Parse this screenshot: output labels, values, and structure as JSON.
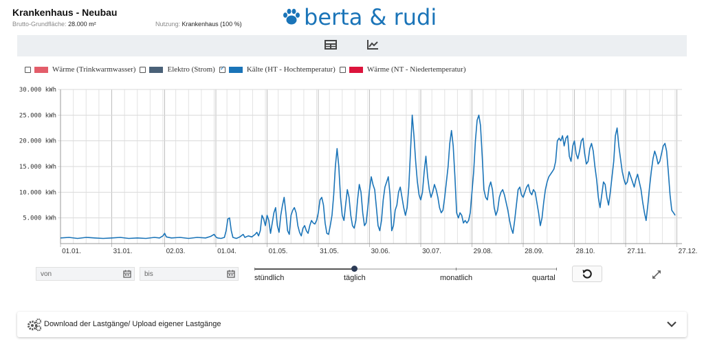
{
  "header": {
    "title": "Krankenhaus - Neubau",
    "area_label": "Brutto-Grundfläche:",
    "area_value": "28.000 m²",
    "usage_label": "Nutzung:",
    "usage_value": "Krankenhaus (100 %)"
  },
  "logo": {
    "text": "berta & rudi",
    "icon": "paw-icon"
  },
  "toolbar": {
    "table_icon": "table-icon",
    "chart_icon": "line-chart-icon"
  },
  "legend": [
    {
      "label": "Wärme (Trinkwarmwasser)",
      "color": "#e35d6a",
      "checked": false
    },
    {
      "label": "Elektro (Strom)",
      "color": "#4a6178",
      "checked": false
    },
    {
      "label": "Kälte (HT - Hochtemperatur)",
      "color": "#1a74b8",
      "checked": true
    },
    {
      "label": "Wärme (NT - Niedertemperatur)",
      "color": "#dc143c",
      "checked": false
    }
  ],
  "chart_data": {
    "type": "line",
    "unit": "kWh",
    "ylim": [
      0,
      30000
    ],
    "yticks": [
      5000,
      10000,
      15000,
      20000,
      25000,
      30000
    ],
    "ytick_labels": [
      "5.000 kWh",
      "10.000 kWh",
      "15.000 kWh",
      "20.000 kWh",
      "25.000 kWh",
      "30.000 kWh"
    ],
    "xlim": [
      0,
      364
    ],
    "xtick_days": [
      0,
      30,
      61,
      91,
      121,
      151,
      181,
      211,
      241,
      271,
      301,
      331,
      361
    ],
    "xtick_labels": [
      "01.01.",
      "31.01.",
      "02.03.",
      "01.04.",
      "01.05.",
      "31.05.",
      "30.06.",
      "30.07.",
      "29.08.",
      "28.09.",
      "28.10.",
      "27.11.",
      "27.12."
    ],
    "grid": true,
    "series": [
      {
        "name": "Kälte (HT - Hochtemperatur)",
        "color": "#1a74b8",
        "points": [
          [
            0,
            1100
          ],
          [
            5,
            1200
          ],
          [
            10,
            1000
          ],
          [
            15,
            1200
          ],
          [
            20,
            1100
          ],
          [
            25,
            1000
          ],
          [
            30,
            1100
          ],
          [
            35,
            1200
          ],
          [
            40,
            1000
          ],
          [
            45,
            1100
          ],
          [
            50,
            1000
          ],
          [
            55,
            1200
          ],
          [
            58,
            1100
          ],
          [
            60,
            1500
          ],
          [
            61,
            2000
          ],
          [
            62,
            1300
          ],
          [
            65,
            1100
          ],
          [
            70,
            1200
          ],
          [
            75,
            1000
          ],
          [
            80,
            1200
          ],
          [
            85,
            1100
          ],
          [
            88,
            1400
          ],
          [
            90,
            1800
          ],
          [
            91,
            1300
          ],
          [
            92,
            1100
          ],
          [
            94,
            1000
          ],
          [
            96,
            1200
          ],
          [
            97,
            2500
          ],
          [
            98,
            4800
          ],
          [
            99,
            5000
          ],
          [
            100,
            2500
          ],
          [
            101,
            1200
          ],
          [
            103,
            1000
          ],
          [
            105,
            1300
          ],
          [
            107,
            1800
          ],
          [
            108,
            1200
          ],
          [
            110,
            1500
          ],
          [
            112,
            1300
          ],
          [
            114,
            1800
          ],
          [
            115,
            2200
          ],
          [
            116,
            1500
          ],
          [
            117,
            2500
          ],
          [
            118,
            5500
          ],
          [
            119,
            4800
          ],
          [
            120,
            3500
          ],
          [
            121,
            5500
          ],
          [
            122,
            4500
          ],
          [
            123,
            2000
          ],
          [
            124,
            4000
          ],
          [
            125,
            6000
          ],
          [
            126,
            7000
          ],
          [
            127,
            3500
          ],
          [
            128,
            2200
          ],
          [
            129,
            5500
          ],
          [
            130,
            7500
          ],
          [
            131,
            9000
          ],
          [
            132,
            6000
          ],
          [
            133,
            2500
          ],
          [
            134,
            1800
          ],
          [
            135,
            5500
          ],
          [
            136,
            6500
          ],
          [
            137,
            7000
          ],
          [
            138,
            6000
          ],
          [
            139,
            3500
          ],
          [
            140,
            2200
          ],
          [
            141,
            1500
          ],
          [
            142,
            3000
          ],
          [
            143,
            3500
          ],
          [
            144,
            2500
          ],
          [
            145,
            2000
          ],
          [
            146,
            3500
          ],
          [
            147,
            4500
          ],
          [
            148,
            4000
          ],
          [
            149,
            3800
          ],
          [
            150,
            4500
          ],
          [
            151,
            6000
          ],
          [
            152,
            8500
          ],
          [
            153,
            9000
          ],
          [
            154,
            7500
          ],
          [
            155,
            4000
          ],
          [
            156,
            2000
          ],
          [
            157,
            1800
          ],
          [
            158,
            3500
          ],
          [
            159,
            5500
          ],
          [
            160,
            9500
          ],
          [
            161,
            15000
          ],
          [
            162,
            18500
          ],
          [
            163,
            15000
          ],
          [
            164,
            9000
          ],
          [
            165,
            5500
          ],
          [
            166,
            4500
          ],
          [
            167,
            7500
          ],
          [
            168,
            10500
          ],
          [
            169,
            9000
          ],
          [
            170,
            5500
          ],
          [
            171,
            3500
          ],
          [
            172,
            3000
          ],
          [
            173,
            4500
          ],
          [
            174,
            8500
          ],
          [
            175,
            11500
          ],
          [
            176,
            10000
          ],
          [
            177,
            6000
          ],
          [
            178,
            3500
          ],
          [
            179,
            4000
          ],
          [
            180,
            7000
          ],
          [
            181,
            10500
          ],
          [
            182,
            13000
          ],
          [
            183,
            11500
          ],
          [
            184,
            10500
          ],
          [
            185,
            7000
          ],
          [
            186,
            3500
          ],
          [
            187,
            2500
          ],
          [
            188,
            4500
          ],
          [
            189,
            8500
          ],
          [
            190,
            11000
          ],
          [
            191,
            12000
          ],
          [
            192,
            13000
          ],
          [
            193,
            9500
          ],
          [
            194,
            2500
          ],
          [
            195,
            3500
          ],
          [
            196,
            6500
          ],
          [
            197,
            7500
          ],
          [
            198,
            10000
          ],
          [
            199,
            11000
          ],
          [
            200,
            9000
          ],
          [
            201,
            7000
          ],
          [
            202,
            5500
          ],
          [
            203,
            7000
          ],
          [
            204,
            11000
          ],
          [
            205,
            18000
          ],
          [
            206,
            25000
          ],
          [
            207,
            21000
          ],
          [
            208,
            16000
          ],
          [
            209,
            12000
          ],
          [
            210,
            9500
          ],
          [
            211,
            8500
          ],
          [
            212,
            10000
          ],
          [
            213,
            14000
          ],
          [
            214,
            17000
          ],
          [
            215,
            13000
          ],
          [
            216,
            10500
          ],
          [
            217,
            9000
          ],
          [
            218,
            10000
          ],
          [
            219,
            11500
          ],
          [
            220,
            10500
          ],
          [
            221,
            9000
          ],
          [
            222,
            7000
          ],
          [
            223,
            6000
          ],
          [
            224,
            6500
          ],
          [
            225,
            9000
          ],
          [
            226,
            12000
          ],
          [
            227,
            15000
          ],
          [
            228,
            19500
          ],
          [
            229,
            22000
          ],
          [
            230,
            19000
          ],
          [
            231,
            13000
          ],
          [
            232,
            6000
          ],
          [
            233,
            5000
          ],
          [
            234,
            6000
          ],
          [
            235,
            5500
          ],
          [
            236,
            4000
          ],
          [
            237,
            4500
          ],
          [
            238,
            4000
          ],
          [
            239,
            4500
          ],
          [
            240,
            6000
          ],
          [
            241,
            10000
          ],
          [
            242,
            14000
          ],
          [
            243,
            20000
          ],
          [
            244,
            24000
          ],
          [
            245,
            25000
          ],
          [
            246,
            23000
          ],
          [
            247,
            17000
          ],
          [
            248,
            10500
          ],
          [
            249,
            9000
          ],
          [
            250,
            8500
          ],
          [
            251,
            11000
          ],
          [
            252,
            12000
          ],
          [
            253,
            10500
          ],
          [
            254,
            7000
          ],
          [
            255,
            5500
          ],
          [
            256,
            6500
          ],
          [
            257,
            9000
          ],
          [
            258,
            10000
          ],
          [
            259,
            10500
          ],
          [
            260,
            9500
          ],
          [
            261,
            8000
          ],
          [
            262,
            6500
          ],
          [
            263,
            4500
          ],
          [
            264,
            3000
          ],
          [
            265,
            2000
          ],
          [
            266,
            4500
          ],
          [
            267,
            7500
          ],
          [
            268,
            10500
          ],
          [
            269,
            11000
          ],
          [
            270,
            9500
          ],
          [
            271,
            9000
          ],
          [
            272,
            10000
          ],
          [
            273,
            11000
          ],
          [
            274,
            11500
          ],
          [
            275,
            10000
          ],
          [
            276,
            9500
          ],
          [
            277,
            10500
          ],
          [
            278,
            10000
          ],
          [
            279,
            8000
          ],
          [
            280,
            6000
          ],
          [
            281,
            3500
          ],
          [
            282,
            5000
          ],
          [
            283,
            8000
          ],
          [
            284,
            10500
          ],
          [
            285,
            12000
          ],
          [
            286,
            13000
          ],
          [
            287,
            13500
          ],
          [
            288,
            14000
          ],
          [
            289,
            14500
          ],
          [
            290,
            16000
          ],
          [
            291,
            20000
          ],
          [
            292,
            20500
          ],
          [
            293,
            20000
          ],
          [
            294,
            21000
          ],
          [
            295,
            19000
          ],
          [
            296,
            20500
          ],
          [
            297,
            21000
          ],
          [
            298,
            17000
          ],
          [
            299,
            16000
          ],
          [
            300,
            19000
          ],
          [
            301,
            20000
          ],
          [
            302,
            17500
          ],
          [
            303,
            16500
          ],
          [
            304,
            18000
          ],
          [
            305,
            20000
          ],
          [
            306,
            20500
          ],
          [
            307,
            17500
          ],
          [
            308,
            15500
          ],
          [
            309,
            16000
          ],
          [
            310,
            18500
          ],
          [
            311,
            19500
          ],
          [
            312,
            18000
          ],
          [
            313,
            15000
          ],
          [
            314,
            12500
          ],
          [
            315,
            9000
          ],
          [
            316,
            7000
          ],
          [
            317,
            9500
          ],
          [
            318,
            12000
          ],
          [
            319,
            11500
          ],
          [
            320,
            9000
          ],
          [
            321,
            7500
          ],
          [
            322,
            10000
          ],
          [
            323,
            13000
          ],
          [
            324,
            16000
          ],
          [
            325,
            21000
          ],
          [
            326,
            22500
          ],
          [
            327,
            19000
          ],
          [
            328,
            16500
          ],
          [
            329,
            14000
          ],
          [
            330,
            12500
          ],
          [
            331,
            11500
          ],
          [
            332,
            12000
          ],
          [
            333,
            14000
          ],
          [
            334,
            13000
          ],
          [
            335,
            12000
          ],
          [
            336,
            11000
          ],
          [
            337,
            12500
          ],
          [
            338,
            13500
          ],
          [
            339,
            12000
          ],
          [
            340,
            10500
          ],
          [
            341,
            8000
          ],
          [
            342,
            6000
          ],
          [
            343,
            4500
          ],
          [
            344,
            7500
          ],
          [
            345,
            11000
          ],
          [
            346,
            14000
          ],
          [
            347,
            16500
          ],
          [
            348,
            18000
          ],
          [
            349,
            17000
          ],
          [
            350,
            15500
          ],
          [
            351,
            16000
          ],
          [
            352,
            17500
          ],
          [
            353,
            19000
          ],
          [
            354,
            19500
          ],
          [
            355,
            18000
          ],
          [
            356,
            14000
          ],
          [
            357,
            9500
          ],
          [
            358,
            6500
          ],
          [
            359,
            6000
          ],
          [
            360,
            5500
          ]
        ]
      }
    ]
  },
  "controls": {
    "from_placeholder": "von",
    "to_placeholder": "bis",
    "resolution_options": [
      "stündlich",
      "täglich",
      "monatlich",
      "quartal"
    ],
    "resolution_selected": "täglich",
    "reset_icon": "reset-icon",
    "expand_icon": "expand-icon"
  },
  "panel": {
    "label": "Download der Lastgänge/ Upload eigener Lastgänge",
    "icon": "gears-icon",
    "toggle_icon": "chevron-down-icon"
  }
}
